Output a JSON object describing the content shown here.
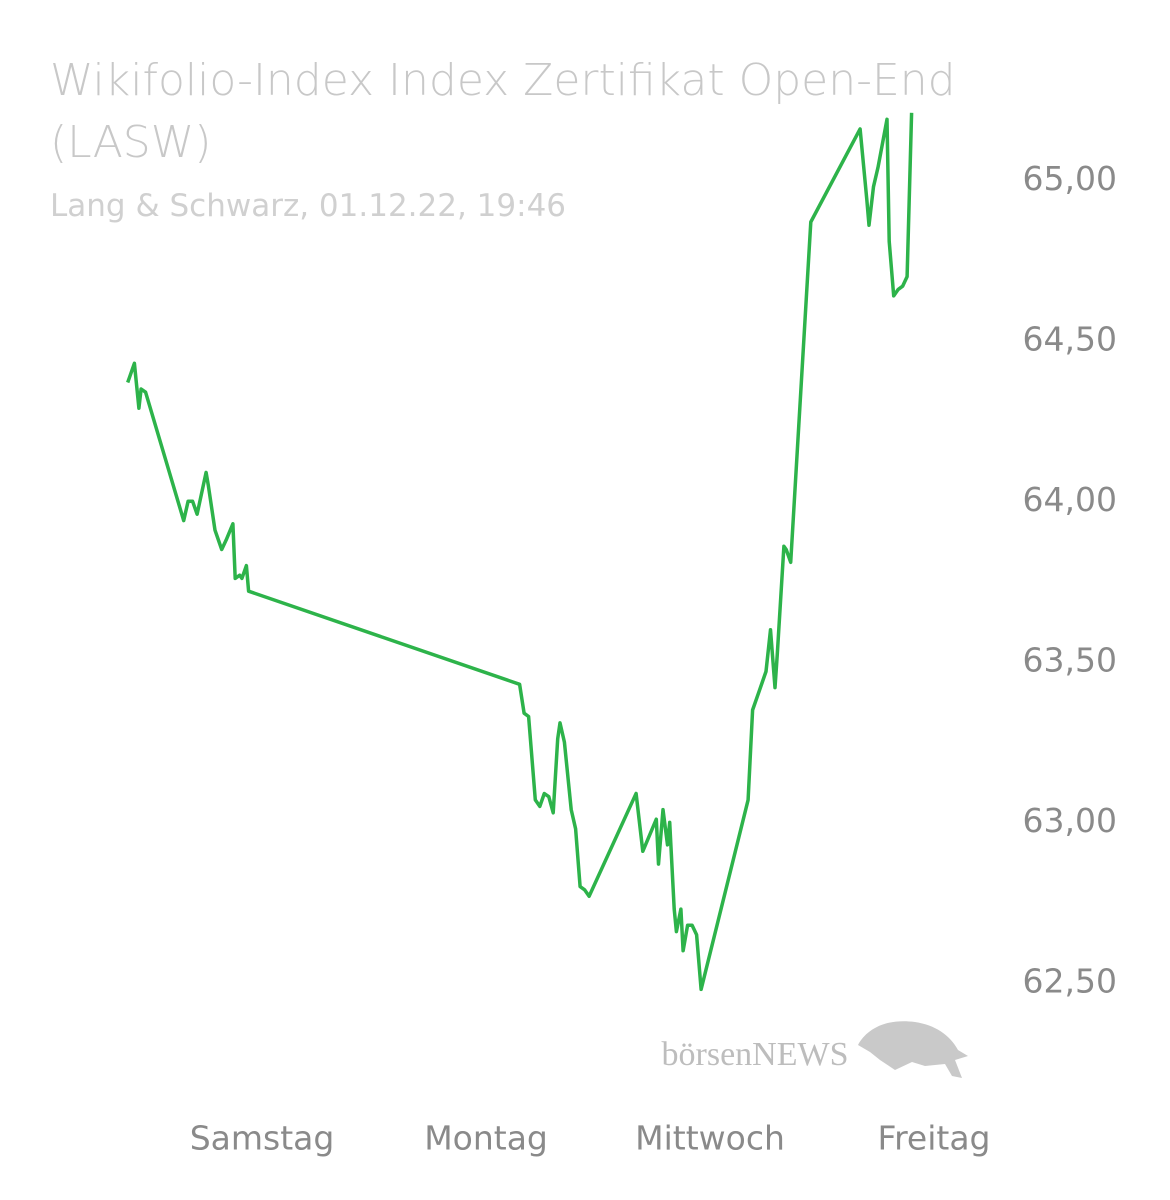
{
  "chart_data": {
    "type": "line",
    "title": "Wikifolio-Index Index Zertifikat Open-End (LASW)",
    "subtitle": "Lang & Schwarz, 01.12.22, 19:46",
    "watermark": "börsenNEWS",
    "categories": [
      "Samstag",
      "Montag",
      "Mittwoch",
      "Freitag"
    ],
    "xlim": [
      -1.17,
      3.25
    ],
    "ylim": [
      62.26,
      65.25
    ],
    "yticks": [
      {
        "value": 62.5,
        "label": "62,50"
      },
      {
        "value": 63,
        "label": "63,00"
      },
      {
        "value": 63.5,
        "label": "63,50"
      },
      {
        "value": 64,
        "label": "64,00"
      },
      {
        "value": 64.5,
        "label": "64,50"
      },
      {
        "value": 65,
        "label": "65,00"
      }
    ],
    "grid": false,
    "series": [
      {
        "color": "#2db34a",
        "x": [
          -0.6,
          -0.57,
          -0.55,
          -0.54,
          -0.52,
          -0.35,
          -0.33,
          -0.31,
          -0.29,
          -0.25,
          -0.24,
          -0.21,
          -0.18,
          -0.16,
          -0.13,
          -0.12,
          -0.1,
          -0.09,
          -0.07,
          -0.06,
          1.15,
          1.17,
          1.19,
          1.22,
          1.24,
          1.26,
          1.28,
          1.3,
          1.32,
          1.33,
          1.35,
          1.38,
          1.4,
          1.42,
          1.44,
          1.46,
          1.67,
          1.7,
          1.76,
          1.77,
          1.79,
          1.81,
          1.82,
          1.84,
          1.85,
          1.87,
          1.88,
          1.9,
          1.92,
          1.94,
          1.96,
          2.17,
          2.19,
          2.22,
          2.25,
          2.27,
          2.29,
          2.3,
          2.33,
          2.34,
          2.36,
          2.45,
          2.67,
          2.7,
          2.71,
          2.73,
          2.75,
          2.79,
          2.8,
          2.82,
          2.84,
          2.86,
          2.88,
          2.9
        ],
        "values": [
          64.37,
          64.43,
          64.29,
          64.35,
          64.34,
          63.94,
          64.0,
          64.0,
          63.96,
          64.09,
          64.05,
          63.91,
          63.85,
          63.88,
          63.93,
          63.76,
          63.77,
          63.76,
          63.8,
          63.72,
          63.43,
          63.34,
          63.33,
          63.07,
          63.05,
          63.09,
          63.08,
          63.03,
          63.26,
          63.31,
          63.25,
          63.04,
          62.98,
          62.8,
          62.79,
          62.77,
          63.09,
          62.91,
          63.01,
          62.87,
          63.04,
          62.93,
          63.0,
          62.73,
          62.66,
          62.73,
          62.6,
          62.68,
          62.68,
          62.65,
          62.48,
          63.07,
          63.35,
          63.41,
          63.47,
          63.6,
          63.42,
          63.52,
          63.86,
          63.85,
          63.81,
          64.87,
          65.16,
          64.94,
          64.86,
          64.98,
          65.04,
          65.19,
          64.81,
          64.64,
          64.66,
          64.67,
          64.7,
          65.21
        ]
      }
    ]
  }
}
